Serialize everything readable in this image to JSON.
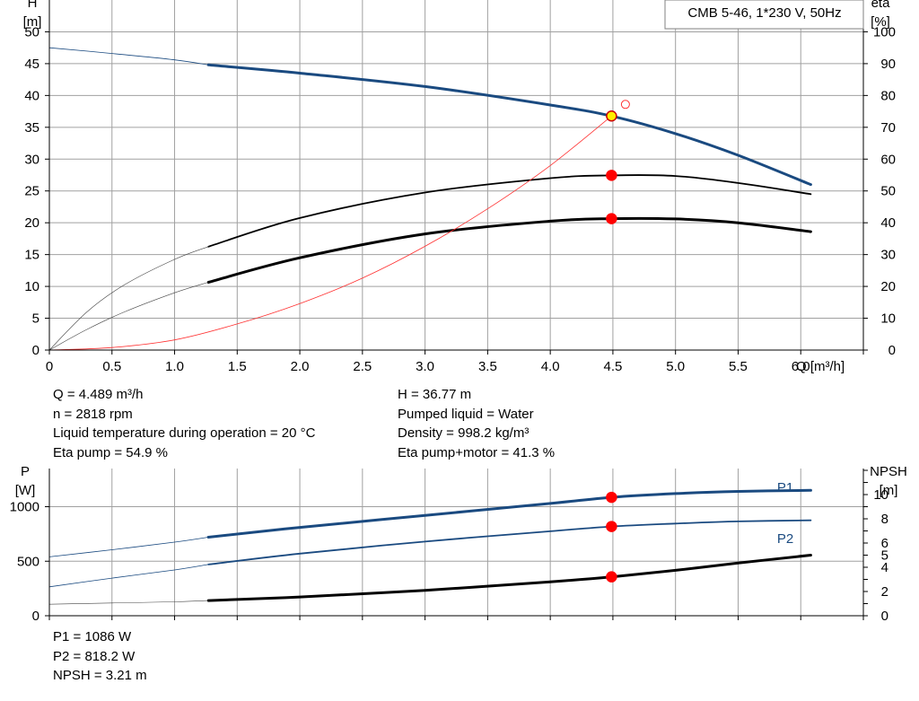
{
  "chart_data": [
    {
      "type": "line",
      "title": "CMB 5-46, 1*230 V, 50Hz",
      "xlabel": "Q [m³/h]",
      "ylabel_left": [
        "H",
        "[m]"
      ],
      "ylabel_right": [
        "eta",
        "[%]"
      ],
      "x_ticks": [
        "0",
        "0.5",
        "1.0",
        "1.5",
        "2.0",
        "2.5",
        "3.0",
        "3.5",
        "4.0",
        "4.5",
        "5.0",
        "5.5",
        "6.0"
      ],
      "y_ticks_left": [
        "0",
        "5",
        "10",
        "15",
        "20",
        "25",
        "30",
        "35",
        "40",
        "45",
        "50"
      ],
      "y_ticks_right": [
        "0",
        "10",
        "20",
        "30",
        "40",
        "50",
        "60",
        "70",
        "80",
        "90",
        "100"
      ],
      "xlim": [
        0,
        6.5
      ],
      "ylim_left": [
        0,
        55
      ],
      "ylim_right": [
        0,
        110
      ],
      "grid": true,
      "series": [
        {
          "axis": "left",
          "color": "#1a4a80",
          "width": 3,
          "x": [
            1.27,
            2.0,
            3.0,
            4.0,
            4.489,
            5.0,
            5.5,
            6.08
          ],
          "y": [
            44.8,
            43.5,
            41.4,
            38.5,
            36.77,
            34.0,
            30.6,
            26.0
          ]
        },
        {
          "axis": "left",
          "color": "#1a4a80",
          "width": 0.8,
          "x": [
            0,
            0.5,
            1.0,
            1.27
          ],
          "y": [
            47.5,
            46.6,
            45.6,
            44.8
          ]
        },
        {
          "axis": "right",
          "color": "#000000",
          "width": 1.8,
          "x": [
            1.27,
            2.0,
            3.0,
            4.0,
            4.489,
            5.0,
            5.5,
            6.08
          ],
          "y": [
            32.5,
            41.5,
            49.5,
            54.0,
            54.9,
            54.7,
            52.5,
            49.0
          ]
        },
        {
          "axis": "right",
          "color": "#444444",
          "width": 0.6,
          "x": [
            0,
            0.3,
            0.6,
            1.0,
            1.27
          ],
          "y": [
            0,
            12.0,
            20.5,
            28.5,
            32.5
          ]
        },
        {
          "axis": "right",
          "color": "#000000",
          "width": 3,
          "x": [
            1.27,
            2.0,
            3.0,
            4.0,
            4.489,
            5.0,
            5.5,
            6.08
          ],
          "y": [
            21.3,
            29.0,
            36.5,
            40.5,
            41.3,
            41.2,
            40.0,
            37.2
          ]
        },
        {
          "axis": "right",
          "color": "#444444",
          "width": 0.6,
          "x": [
            0,
            0.3,
            0.6,
            1.0,
            1.27
          ],
          "y": [
            0,
            6.5,
            12.0,
            18.0,
            21.3
          ]
        },
        {
          "axis": "left",
          "color": "#ff3030",
          "width": 0.8,
          "x": [
            0,
            0.5,
            1.0,
            1.5,
            2.0,
            2.5,
            3.0,
            3.5,
            4.0,
            4.489
          ],
          "y": [
            0,
            0.4,
            1.6,
            4.1,
            7.3,
            11.3,
            16.3,
            22.2,
            29.0,
            36.77
          ]
        }
      ],
      "points": [
        {
          "axis": "left",
          "x": 4.489,
          "y": 36.77,
          "fill": "#ffee00",
          "stroke": "#cc0000"
        },
        {
          "axis": "right",
          "x": 4.489,
          "y": 54.9,
          "fill": "#ff0000",
          "stroke": "#ff0000"
        },
        {
          "axis": "right",
          "x": 4.489,
          "y": 41.3,
          "fill": "#ff0000",
          "stroke": "#ff0000"
        },
        {
          "axis": "left",
          "x": 4.6,
          "y": 38.6,
          "fill": "none",
          "stroke": "#ff3030",
          "r": 4.5
        }
      ]
    },
    {
      "type": "line",
      "xlabel": "",
      "ylabel_left": [
        "P",
        "[W]"
      ],
      "ylabel_right": [
        "NPSH",
        "[m]"
      ],
      "y_ticks_left": [
        "0",
        "500",
        "1000"
      ],
      "y_ticks_right": [
        "0",
        "2",
        "4",
        "5",
        "6",
        "8",
        "10"
      ],
      "y_ticks_right_values": [
        0,
        2,
        4,
        5,
        6,
        8,
        10
      ],
      "xlim": [
        0,
        6.5
      ],
      "ylim_left": [
        0,
        1350
      ],
      "ylim_right": [
        0,
        12.15
      ],
      "grid": true,
      "series": [
        {
          "name": "P1",
          "axis": "left",
          "color": "#1a4a80",
          "width": 3,
          "x": [
            1.27,
            2.0,
            3.0,
            4.0,
            4.489,
            5.0,
            5.5,
            6.08
          ],
          "y": [
            720,
            810,
            920,
            1030,
            1086,
            1120,
            1140,
            1150
          ]
        },
        {
          "axis": "left",
          "color": "#1a4a80",
          "width": 0.8,
          "x": [
            0,
            0.5,
            1.0,
            1.27
          ],
          "y": [
            540,
            605,
            675,
            720
          ]
        },
        {
          "name": "P2",
          "axis": "left",
          "color": "#1a4a80",
          "width": 1.8,
          "x": [
            1.27,
            2.0,
            3.0,
            4.0,
            4.489,
            5.0,
            5.5,
            6.08
          ],
          "y": [
            470,
            570,
            680,
            775,
            818.2,
            845,
            865,
            875
          ]
        },
        {
          "axis": "left",
          "color": "#1a4a80",
          "width": 0.8,
          "x": [
            0,
            0.5,
            1.0,
            1.27
          ],
          "y": [
            265,
            345,
            420,
            470
          ]
        },
        {
          "axis": "right",
          "color": "#000000",
          "width": 3,
          "x": [
            1.27,
            2.0,
            3.0,
            4.0,
            4.489,
            5.0,
            5.5,
            6.08
          ],
          "y": [
            1.25,
            1.55,
            2.1,
            2.8,
            3.21,
            3.75,
            4.35,
            5.0
          ]
        },
        {
          "axis": "right",
          "color": "#444444",
          "width": 0.6,
          "x": [
            0,
            0.5,
            1.0,
            1.27
          ],
          "y": [
            0.95,
            1.05,
            1.15,
            1.25
          ]
        }
      ],
      "points": [
        {
          "axis": "left",
          "x": 4.489,
          "y": 1086,
          "fill": "#ff0000",
          "stroke": "#ff0000"
        },
        {
          "axis": "left",
          "x": 4.489,
          "y": 818.2,
          "fill": "#ff0000",
          "stroke": "#ff0000"
        },
        {
          "axis": "right",
          "x": 4.489,
          "y": 3.21,
          "fill": "#ff0000",
          "stroke": "#ff0000"
        }
      ],
      "series_labels": [
        "P1",
        "P2"
      ]
    }
  ],
  "info_top": {
    "left": [
      "Q = 4.489 m³/h",
      "n = 2818 rpm",
      "Liquid temperature during operation = 20 °C",
      "Eta pump = 54.9 %"
    ],
    "right": [
      "H = 36.77 m",
      "Pumped liquid = Water",
      "Density = 998.2 kg/m³",
      "Eta pump+motor = 41.3 %"
    ]
  },
  "info_bottom": [
    "P1 = 1086 W",
    "P2 = 818.2 W",
    "NPSH = 3.21 m"
  ]
}
